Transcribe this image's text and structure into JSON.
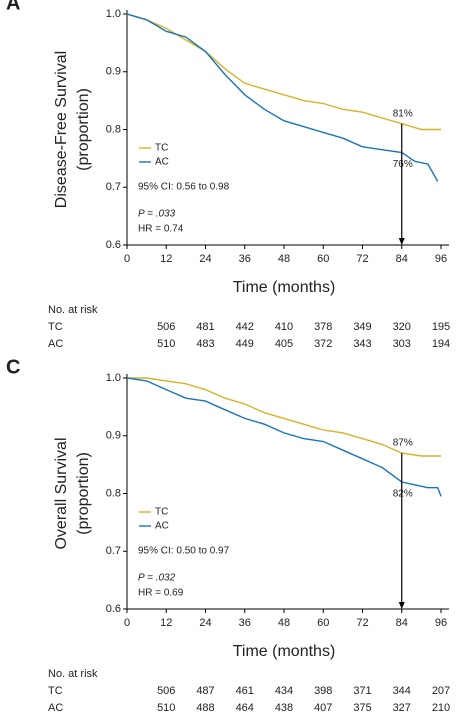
{
  "chart_data": [
    {
      "type": "line",
      "panel": "A",
      "ylabel": [
        "Disease-Free Survival",
        "(proportion)"
      ],
      "xlabel": "Time (months)",
      "xlim": [
        0,
        96
      ],
      "xticks": [
        0,
        12,
        24,
        36,
        48,
        60,
        72,
        84,
        96
      ],
      "ylim": [
        0.6,
        1.0
      ],
      "yticks": [
        0.6,
        0.7,
        0.8,
        0.9,
        {
          "value": 1.0,
          "label": "1.0"
        }
      ],
      "series": [
        {
          "name": "TC",
          "color": "#d4b428",
          "x": [
            0,
            3,
            6,
            12,
            18,
            24,
            30,
            36,
            42,
            48,
            54,
            60,
            66,
            72,
            78,
            84,
            90,
            96
          ],
          "values": [
            1.0,
            0.995,
            0.99,
            0.975,
            0.955,
            0.935,
            0.905,
            0.88,
            0.87,
            0.86,
            0.85,
            0.845,
            0.835,
            0.83,
            0.82,
            0.81,
            0.8,
            0.8
          ]
        },
        {
          "name": "AC",
          "color": "#1b75bc",
          "x": [
            0,
            6,
            12,
            18,
            24,
            30,
            36,
            42,
            48,
            54,
            60,
            66,
            72,
            78,
            84,
            88,
            92,
            94,
            95
          ],
          "values": [
            1.0,
            0.99,
            0.97,
            0.96,
            0.935,
            0.895,
            0.86,
            0.835,
            0.815,
            0.805,
            0.795,
            0.785,
            0.77,
            0.765,
            0.76,
            0.745,
            0.74,
            0.72,
            0.71
          ]
        }
      ],
      "endpoint_labels": [
        {
          "text": "81%",
          "x": 84,
          "y": 0.81
        },
        {
          "text": "76%",
          "x": 84,
          "y": 0.76
        }
      ],
      "stats": [
        "95% CI: 0.56 to 0.98",
        "P = .033",
        "HR = 0.74"
      ],
      "risk_table": {
        "title": "No. at risk",
        "rows": [
          {
            "name": "TC",
            "values": [
              506,
              481,
              442,
              410,
              378,
              349,
              320,
              195
            ]
          },
          {
            "name": "AC",
            "values": [
              510,
              483,
              449,
              405,
              372,
              343,
              303,
              194
            ]
          }
        ]
      }
    },
    {
      "type": "line",
      "panel": "C",
      "ylabel": [
        "Overall Survival",
        "(proportion)"
      ],
      "xlabel": "Time (months)",
      "xlim": [
        0,
        96
      ],
      "xticks": [
        0,
        12,
        24,
        36,
        48,
        60,
        72,
        84,
        96
      ],
      "ylim": [
        0.6,
        1.0
      ],
      "yticks": [
        0.6,
        0.7,
        0.8,
        0.9,
        {
          "value": 1.0,
          "label": "1.0"
        }
      ],
      "series": [
        {
          "name": "TC",
          "color": "#d4b428",
          "x": [
            0,
            6,
            12,
            18,
            24,
            30,
            36,
            42,
            48,
            54,
            60,
            66,
            72,
            78,
            84,
            90,
            96
          ],
          "values": [
            1.0,
            1.0,
            0.995,
            0.99,
            0.98,
            0.965,
            0.955,
            0.94,
            0.93,
            0.92,
            0.91,
            0.905,
            0.895,
            0.885,
            0.87,
            0.865,
            0.865
          ]
        },
        {
          "name": "AC",
          "color": "#1b75bc",
          "x": [
            0,
            6,
            12,
            18,
            24,
            30,
            36,
            42,
            48,
            54,
            60,
            66,
            72,
            78,
            84,
            88,
            92,
            95,
            96
          ],
          "values": [
            1.0,
            0.995,
            0.98,
            0.965,
            0.96,
            0.945,
            0.93,
            0.92,
            0.905,
            0.895,
            0.89,
            0.875,
            0.86,
            0.845,
            0.82,
            0.815,
            0.81,
            0.81,
            0.795
          ]
        }
      ],
      "endpoint_labels": [
        {
          "text": "87%",
          "x": 84,
          "y": 0.87
        },
        {
          "text": "82%",
          "x": 84,
          "y": 0.82
        }
      ],
      "stats": [
        "95% CI: 0.50 to 0.97",
        "P = .032",
        "HR = 0.69"
      ],
      "risk_table": {
        "title": "No. at risk",
        "rows": [
          {
            "name": "TC",
            "values": [
              506,
              487,
              461,
              434,
              398,
              371,
              344,
              207
            ]
          },
          {
            "name": "AC",
            "values": [
              510,
              488,
              464,
              438,
              407,
              375,
              327,
              210
            ]
          }
        ]
      }
    }
  ]
}
